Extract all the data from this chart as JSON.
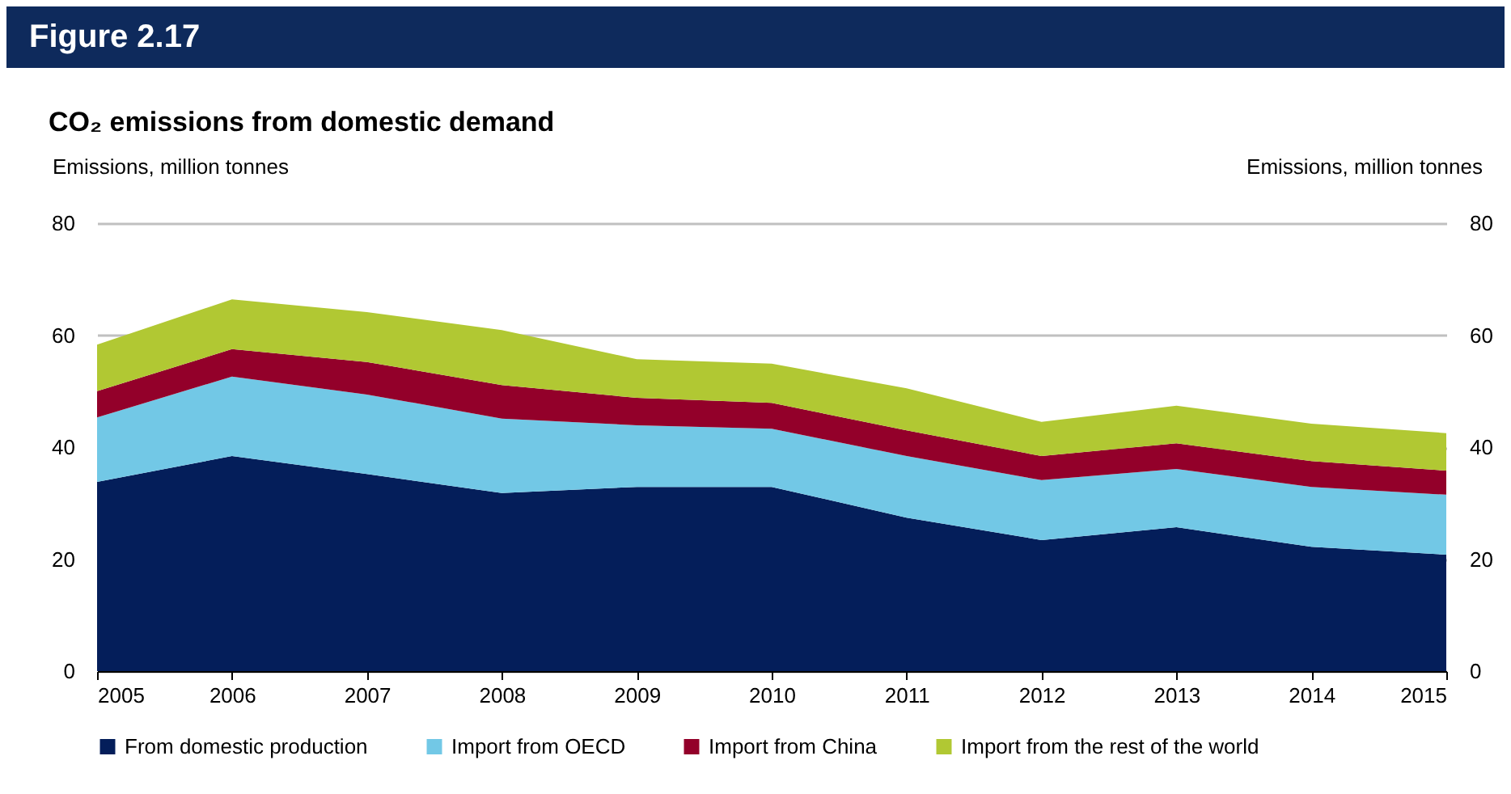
{
  "chart_data": {
    "type": "area",
    "title": "Figure 2.17",
    "subtitle": "CO₂ emissions from domestic demand",
    "ylabel": "Emissions, million tonnes",
    "y2label": "Emissions, million tonnes",
    "x": [
      2005,
      2006,
      2007,
      2008,
      2009,
      2010,
      2011,
      2012,
      2013,
      2014,
      2015
    ],
    "series": [
      {
        "name": "From domestic production",
        "color": "#041e5a",
        "values": [
          33.8,
          38.4,
          35.2,
          31.8,
          32.9,
          32.9,
          27.4,
          23.4,
          25.7,
          22.2,
          20.8
        ]
      },
      {
        "name": "Import from OECD",
        "color": "#72c8e6",
        "values": [
          11.5,
          14.2,
          14.2,
          13.3,
          11.0,
          10.4,
          11.0,
          10.7,
          10.4,
          10.7,
          10.7
        ]
      },
      {
        "name": "Import from China",
        "color": "#93002a",
        "values": [
          4.7,
          4.9,
          5.8,
          6.0,
          4.9,
          4.6,
          4.6,
          4.3,
          4.6,
          4.6,
          4.3
        ]
      },
      {
        "name": "Import from the rest of the world",
        "color": "#b1c833",
        "values": [
          8.3,
          8.9,
          8.9,
          9.8,
          6.9,
          7.0,
          7.5,
          6.1,
          6.7,
          6.7,
          6.7
        ]
      }
    ],
    "stacked": true,
    "xlim": [
      2005,
      2015
    ],
    "xticks": [
      2005,
      2006,
      2007,
      2008,
      2009,
      2010,
      2011,
      2012,
      2013,
      2014,
      2015
    ],
    "ylim": [
      0,
      80
    ],
    "yticks": [
      0,
      20,
      40,
      60,
      80
    ],
    "y2lim": [
      0,
      80
    ],
    "y2ticks": [
      0,
      20,
      40,
      60,
      80
    ],
    "grid": "y",
    "legend": "bottom"
  }
}
